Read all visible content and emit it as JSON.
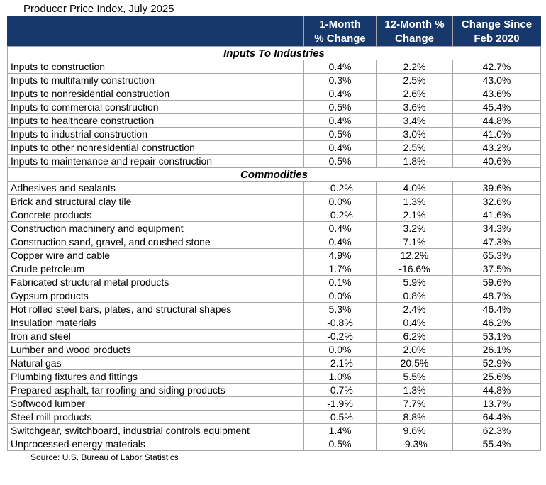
{
  "title": "Producer Price Index, July 2025",
  "source": "Source: U.S. Bureau of Labor Statistics",
  "colors": {
    "header_bg": "#17386A",
    "header_text": "#FFFFFF",
    "grid_border": "#A6A6A6",
    "outer_border": "#808080",
    "body_text": "#000000"
  },
  "chart_data": {
    "type": "table",
    "title": "Producer Price Index, July 2025",
    "columns": [
      "1-Month % Change",
      "12-Month % Change",
      "Change Since Feb 2020"
    ],
    "column_header_lines": [
      [
        "1-Month",
        "% Change"
      ],
      [
        "12-Month %",
        "Change"
      ],
      [
        "Change Since",
        "Feb 2020"
      ]
    ],
    "sections": [
      {
        "name": "Inputs To Industries",
        "rows": [
          [
            "Inputs to construction",
            "0.4%",
            "2.2%",
            "42.7%"
          ],
          [
            "Inputs to multifamily construction",
            "0.3%",
            "2.5%",
            "43.0%"
          ],
          [
            "Inputs to nonresidential construction",
            "0.4%",
            "2.6%",
            "43.6%"
          ],
          [
            "Inputs to commercial construction",
            "0.5%",
            "3.6%",
            "45.4%"
          ],
          [
            "Inputs to healthcare construction",
            "0.4%",
            "3.4%",
            "44.8%"
          ],
          [
            "Inputs to industrial construction",
            "0.5%",
            "3.0%",
            "41.0%"
          ],
          [
            "Inputs to other nonresidential construction",
            "0.4%",
            "2.5%",
            "43.2%"
          ],
          [
            "Inputs to maintenance and repair construction",
            "0.5%",
            "1.8%",
            "40.6%"
          ]
        ]
      },
      {
        "name": "Commodities",
        "rows": [
          [
            "Adhesives and sealants",
            "-0.2%",
            "4.0%",
            "39.6%"
          ],
          [
            "Brick and structural clay tile",
            "0.0%",
            "1.3%",
            "32.6%"
          ],
          [
            "Concrete products",
            "-0.2%",
            "2.1%",
            "41.6%"
          ],
          [
            "Construction machinery and equipment",
            "0.4%",
            "3.2%",
            "34.3%"
          ],
          [
            "Construction sand, gravel, and crushed stone",
            "0.4%",
            "7.1%",
            "47.3%"
          ],
          [
            "Copper wire and cable",
            "4.9%",
            "12.2%",
            "65.3%"
          ],
          [
            "Crude petroleum",
            "1.7%",
            "-16.6%",
            "37.5%"
          ],
          [
            "Fabricated structural metal products",
            "0.1%",
            "5.9%",
            "59.6%"
          ],
          [
            "Gypsum products",
            "0.0%",
            "0.8%",
            "48.7%"
          ],
          [
            "Hot rolled steel bars, plates, and structural shapes",
            "5.3%",
            "2.4%",
            "46.4%"
          ],
          [
            "Insulation materials",
            "-0.8%",
            "0.4%",
            "46.2%"
          ],
          [
            "Iron and steel",
            "-0.2%",
            "6.2%",
            "53.1%"
          ],
          [
            "Lumber and wood products",
            "0.0%",
            "2.0%",
            "26.1%"
          ],
          [
            "Natural gas",
            "-2.1%",
            "20.5%",
            "52.9%"
          ],
          [
            "Plumbing fixtures and fittings",
            "1.0%",
            "5.5%",
            "25.6%"
          ],
          [
            "Prepared asphalt, tar roofing and siding products",
            "-0.7%",
            "1.3%",
            "44.8%"
          ],
          [
            "Softwood lumber",
            "-1.9%",
            "7.7%",
            "13.7%"
          ],
          [
            "Steel mill products",
            "-0.5%",
            "8.8%",
            "64.4%"
          ],
          [
            "Switchgear, switchboard, industrial controls equipment",
            "1.4%",
            "9.6%",
            "62.3%"
          ],
          [
            "Unprocessed energy materials",
            "0.5%",
            "-9.3%",
            "55.4%"
          ]
        ]
      }
    ],
    "source": "Source: U.S. Bureau of Labor Statistics",
    "layout": {
      "grid": true,
      "label_column_align": "left",
      "value_columns_align": "center"
    }
  }
}
